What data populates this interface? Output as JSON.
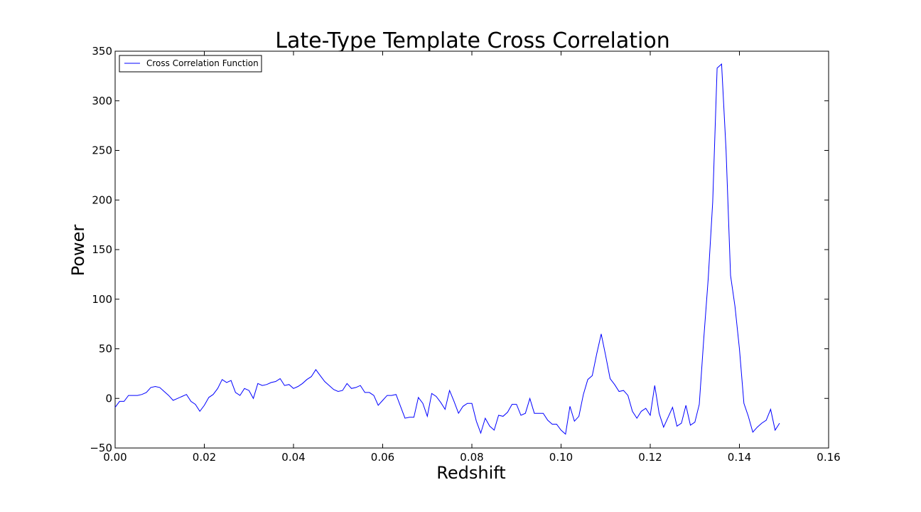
{
  "chart_data": {
    "type": "line",
    "title": "Late-Type Template Cross Correlation",
    "xlabel": "Redshift",
    "ylabel": "Power",
    "xlim": [
      0.0,
      0.16
    ],
    "ylim": [
      -50,
      350
    ],
    "xticks": [
      "0.00",
      "0.02",
      "0.04",
      "0.06",
      "0.08",
      "0.10",
      "0.12",
      "0.14",
      "0.16"
    ],
    "yticks": [
      "−50",
      "0",
      "50",
      "100",
      "150",
      "200",
      "250",
      "300",
      "350"
    ],
    "grid": false,
    "legend_position": "top-left",
    "line_color": "#0000ff",
    "series": [
      {
        "name": "Cross Correlation Function",
        "x": [
          0.0,
          0.001,
          0.002,
          0.003,
          0.004,
          0.005,
          0.006,
          0.007,
          0.008,
          0.009,
          0.01,
          0.011,
          0.012,
          0.013,
          0.014,
          0.015,
          0.016,
          0.017,
          0.018,
          0.019,
          0.02,
          0.021,
          0.022,
          0.023,
          0.024,
          0.025,
          0.026,
          0.027,
          0.028,
          0.029,
          0.03,
          0.031,
          0.032,
          0.033,
          0.034,
          0.035,
          0.036,
          0.037,
          0.038,
          0.039,
          0.04,
          0.041,
          0.042,
          0.043,
          0.044,
          0.045,
          0.046,
          0.047,
          0.048,
          0.049,
          0.05,
          0.051,
          0.052,
          0.053,
          0.054,
          0.055,
          0.056,
          0.057,
          0.058,
          0.059,
          0.06,
          0.061,
          0.062,
          0.063,
          0.064,
          0.065,
          0.066,
          0.067,
          0.068,
          0.069,
          0.07,
          0.071,
          0.072,
          0.073,
          0.074,
          0.075,
          0.076,
          0.077,
          0.078,
          0.079,
          0.08,
          0.081,
          0.082,
          0.083,
          0.084,
          0.085,
          0.086,
          0.087,
          0.088,
          0.089,
          0.09,
          0.091,
          0.092,
          0.093,
          0.094,
          0.095,
          0.096,
          0.097,
          0.098,
          0.099,
          0.1,
          0.101,
          0.102,
          0.103,
          0.104,
          0.105,
          0.106,
          0.107,
          0.108,
          0.109,
          0.11,
          0.111,
          0.112,
          0.113,
          0.114,
          0.115,
          0.116,
          0.117,
          0.118,
          0.119,
          0.12,
          0.121,
          0.122,
          0.123,
          0.124,
          0.125,
          0.126,
          0.127,
          0.128,
          0.129,
          0.13,
          0.131,
          0.132,
          0.133,
          0.134,
          0.135,
          0.136,
          0.137,
          0.138,
          0.139,
          0.14,
          0.141,
          0.142,
          0.143,
          0.144,
          0.145,
          0.146,
          0.147,
          0.148,
          0.149
        ],
        "values": [
          -9,
          -3,
          -3,
          3,
          3,
          3,
          4,
          6,
          11,
          12,
          11,
          7,
          3,
          -2,
          0,
          2,
          4,
          -3,
          -6,
          -13,
          -7,
          1,
          4,
          10,
          19,
          16,
          18,
          6,
          3,
          10,
          8,
          0,
          15,
          13,
          14,
          16,
          17,
          20,
          13,
          14,
          10,
          12,
          15,
          19,
          22,
          29,
          23,
          17,
          13,
          9,
          7,
          8,
          15,
          10,
          11,
          13,
          6,
          6,
          3,
          -7,
          -2,
          3,
          3,
          4,
          -8,
          -20,
          -19,
          -19,
          1,
          -5,
          -18,
          5,
          2,
          -4,
          -11,
          8,
          -3,
          -15,
          -8,
          -5,
          -5,
          -23,
          -35,
          -20,
          -28,
          -32,
          -17,
          -18,
          -14,
          -6,
          -6,
          -17,
          -15,
          0,
          -15,
          -15,
          -15,
          -22,
          -26,
          -26,
          -32,
          -36,
          -8,
          -23,
          -18,
          4,
          19,
          23,
          45,
          65,
          43,
          20,
          14,
          7,
          8,
          3,
          -13,
          -20,
          -13,
          -10,
          -17,
          13,
          -15,
          -29,
          -19,
          -9,
          -28,
          -25,
          -7,
          -27,
          -24,
          -6,
          60,
          121,
          198,
          333,
          337,
          250,
          124,
          93,
          50,
          -5,
          -18,
          -34,
          -29,
          -25,
          -22,
          -11,
          -32,
          -25
        ]
      }
    ]
  }
}
